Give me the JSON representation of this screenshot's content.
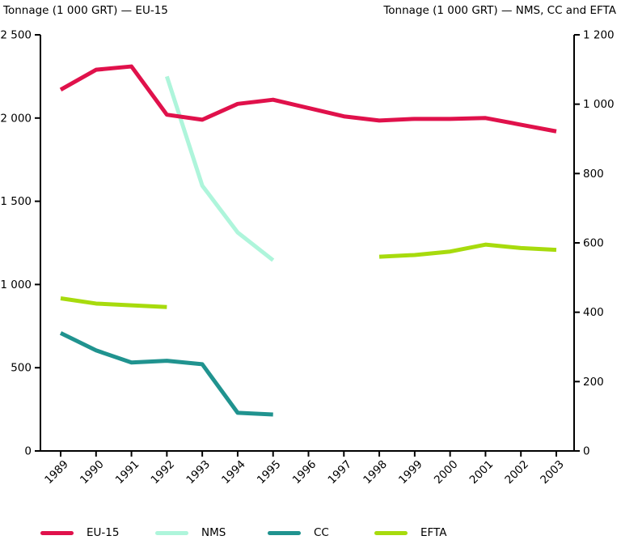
{
  "chart_data": {
    "type": "line",
    "title": "",
    "categories": [
      "1989",
      "1990",
      "1991",
      "1992",
      "1993",
      "1994",
      "1995",
      "1996",
      "1997",
      "1998",
      "1999",
      "2000",
      "2001",
      "2002",
      "2003"
    ],
    "left_axis": {
      "title": "Tonnage (1 000 GRT) — EU-15",
      "min": 0,
      "max": 2500,
      "ticks": [
        {
          "value": 0,
          "label": "0"
        },
        {
          "value": 500,
          "label": "500"
        },
        {
          "value": 1000,
          "label": "1 000"
        },
        {
          "value": 1500,
          "label": "1 500"
        },
        {
          "value": 2000,
          "label": "2 000"
        },
        {
          "value": 2500,
          "label": "2 500"
        }
      ]
    },
    "right_axis": {
      "title": "Tonnage (1 000 GRT) — NMS, CC and EFTA",
      "min": 0,
      "max": 1200,
      "ticks": [
        {
          "value": 0,
          "label": "0"
        },
        {
          "value": 200,
          "label": "200"
        },
        {
          "value": 400,
          "label": "400"
        },
        {
          "value": 600,
          "label": "600"
        },
        {
          "value": 800,
          "label": "800"
        },
        {
          "value": 1000,
          "label": "1 000"
        },
        {
          "value": 1200,
          "label": "1 200"
        }
      ]
    },
    "grid": false,
    "legend_position": "bottom",
    "axis_color": "#000000",
    "text_color": "#000000",
    "series": [
      {
        "name": "EU-15",
        "axis": "left",
        "color": "#e0114b",
        "values": [
          2170,
          2290,
          2310,
          2020,
          1990,
          2085,
          2110,
          2060,
          2010,
          1985,
          1995,
          1995,
          2000,
          1960,
          1920
        ]
      },
      {
        "name": "NMS",
        "axis": "right",
        "color": "#aef5db",
        "values": [
          null,
          null,
          null,
          1080,
          765,
          630,
          550,
          null,
          null,
          null,
          null,
          null,
          null,
          null,
          null
        ]
      },
      {
        "name": "CC",
        "axis": "right",
        "color": "#20938f",
        "values": [
          340,
          290,
          255,
          260,
          250,
          110,
          105,
          null,
          null,
          null,
          null,
          null,
          null,
          null,
          null
        ]
      },
      {
        "name": "EFTA",
        "axis": "right",
        "color": "#a7db0d",
        "values": [
          440,
          425,
          420,
          415,
          null,
          null,
          null,
          null,
          null,
          560,
          565,
          575,
          595,
          585,
          580
        ]
      }
    ]
  }
}
